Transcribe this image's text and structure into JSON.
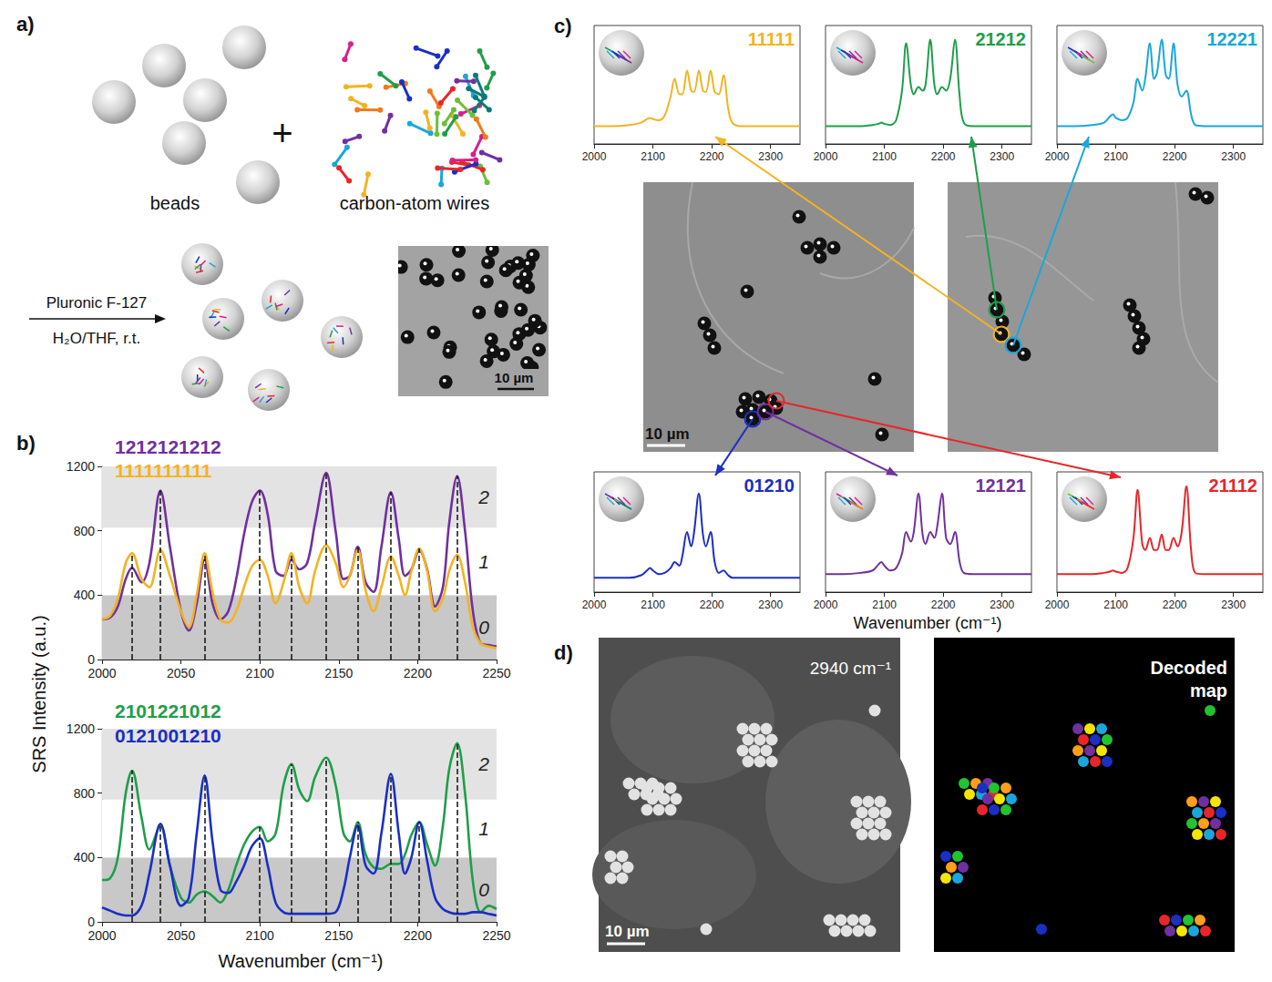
{
  "figure": {
    "panel_letters": [
      "a)",
      "b)",
      "c)",
      "d)"
    ],
    "panel_a": {
      "beads_label": "beads",
      "wires_label": "carbon-atom wires",
      "plus": "+",
      "reagent": "Pluronic F-127",
      "conditions": "H₂O/THF, r.t.",
      "scale_bar": "10 µm"
    },
    "panel_b": {
      "y_axis_title": "SRS Intensity (a.u.)",
      "x_axis_title": "Wavenumber (cm⁻¹)"
    },
    "panel_c": {
      "x_axis_title": "Wavenumber (cm⁻¹)",
      "scale_bar": "10 µm"
    },
    "panel_d": {
      "channel_label": "2940 cm⁻¹",
      "map_label": "Decoded map",
      "scale_bar": "10 µm"
    }
  },
  "chart_data": [
    {
      "type": "line",
      "x": [
        2000,
        2005,
        2010,
        2015,
        2019,
        2025,
        2030,
        2037,
        2043,
        2050,
        2055,
        2060,
        2065,
        2070,
        2075,
        2080,
        2085,
        2090,
        2095,
        2100,
        2105,
        2110,
        2115,
        2120,
        2125,
        2130,
        2135,
        2142,
        2148,
        2153,
        2157,
        2162,
        2167,
        2172,
        2177,
        2183,
        2188,
        2192,
        2196,
        2201,
        2206,
        2211,
        2216,
        2220,
        2225,
        2230,
        2235,
        2240,
        2245,
        2250
      ],
      "series": [
        {
          "name": "1212121212",
          "color": "#7030a0",
          "values": [
            250,
            260,
            330,
            500,
            570,
            480,
            600,
            1050,
            700,
            300,
            180,
            350,
            620,
            350,
            250,
            300,
            500,
            780,
            980,
            1050,
            900,
            550,
            520,
            620,
            560,
            600,
            850,
            1160,
            800,
            500,
            520,
            700,
            480,
            420,
            700,
            1040,
            750,
            520,
            560,
            680,
            560,
            330,
            450,
            850,
            1140,
            800,
            300,
            100,
            90,
            80
          ]
        },
        {
          "name": "1111111111",
          "color": "#f2b323",
          "values": [
            250,
            270,
            380,
            600,
            660,
            500,
            450,
            680,
            520,
            300,
            200,
            400,
            660,
            420,
            250,
            230,
            300,
            450,
            580,
            620,
            520,
            350,
            480,
            660,
            450,
            350,
            550,
            710,
            600,
            450,
            520,
            680,
            430,
            300,
            450,
            640,
            520,
            400,
            550,
            690,
            550,
            300,
            380,
            550,
            650,
            480,
            200,
            100,
            80,
            70
          ]
        }
      ],
      "xlim": [
        2000,
        2250
      ],
      "xticks": [
        2000,
        2050,
        2100,
        2150,
        2200,
        2250
      ],
      "ylim": [
        0,
        1200
      ],
      "yticks": [
        0,
        400,
        800,
        1200
      ],
      "bands": [
        {
          "from": 0,
          "to": 400,
          "label": "0",
          "color": "#c8c8c8"
        },
        {
          "from": 400,
          "to": 820,
          "label": "1",
          "color": "#ffffff"
        },
        {
          "from": 820,
          "to": 1200,
          "label": "2",
          "color": "#e3e3e3"
        }
      ],
      "peak_positions": [
        2019,
        2037,
        2065,
        2100,
        2120,
        2142,
        2162,
        2183,
        2201,
        2225
      ],
      "grid": false
    },
    {
      "type": "line",
      "x": [
        2000,
        2005,
        2010,
        2015,
        2019,
        2025,
        2030,
        2037,
        2043,
        2050,
        2055,
        2060,
        2065,
        2070,
        2075,
        2080,
        2085,
        2090,
        2095,
        2100,
        2105,
        2110,
        2115,
        2120,
        2125,
        2130,
        2135,
        2142,
        2148,
        2153,
        2157,
        2162,
        2167,
        2172,
        2177,
        2183,
        2188,
        2192,
        2196,
        2201,
        2206,
        2211,
        2216,
        2220,
        2225,
        2230,
        2235,
        2240,
        2245,
        2250
      ],
      "series": [
        {
          "name": "2101221012",
          "color": "#1f9e4a",
          "values": [
            260,
            270,
            400,
            800,
            940,
            650,
            450,
            600,
            350,
            150,
            120,
            170,
            190,
            160,
            120,
            200,
            350,
            480,
            560,
            590,
            500,
            550,
            850,
            980,
            820,
            750,
            900,
            1020,
            850,
            550,
            500,
            620,
            420,
            340,
            330,
            360,
            360,
            420,
            540,
            620,
            480,
            350,
            600,
            950,
            1110,
            800,
            250,
            60,
            100,
            80
          ]
        },
        {
          "name": "0121001210",
          "color": "#1a2fc4",
          "values": [
            90,
            70,
            50,
            40,
            40,
            100,
            300,
            610,
            350,
            100,
            150,
            550,
            910,
            500,
            200,
            180,
            250,
            350,
            470,
            520,
            350,
            120,
            60,
            50,
            50,
            50,
            50,
            50,
            60,
            200,
            400,
            600,
            350,
            300,
            550,
            920,
            550,
            300,
            400,
            620,
            380,
            150,
            80,
            60,
            50,
            50,
            60,
            60,
            50,
            40
          ]
        }
      ],
      "xlim": [
        2000,
        2250
      ],
      "xticks": [
        2000,
        2050,
        2100,
        2150,
        2200,
        2250
      ],
      "ylim": [
        0,
        1200
      ],
      "yticks": [
        0,
        400,
        800,
        1200
      ],
      "bands": [
        {
          "from": 0,
          "to": 400,
          "label": "0",
          "color": "#c8c8c8"
        },
        {
          "from": 400,
          "to": 760,
          "label": "1",
          "color": "#ffffff"
        },
        {
          "from": 760,
          "to": 1200,
          "label": "2",
          "color": "#e3e3e3"
        }
      ],
      "peak_positions": [
        2019,
        2037,
        2065,
        2100,
        2120,
        2142,
        2162,
        2183,
        2201,
        2225
      ],
      "grid": false
    },
    {
      "type": "line",
      "title": "11111",
      "color": "#f2b323",
      "x": [
        2000,
        2030,
        2060,
        2080,
        2090,
        2095,
        2100,
        2110,
        2120,
        2130,
        2137,
        2145,
        2150,
        2158,
        2165,
        2170,
        2178,
        2185,
        2190,
        2198,
        2205,
        2212,
        2220,
        2228,
        2235,
        2250,
        2280,
        2320,
        2350
      ],
      "values": [
        15,
        15,
        16,
        18,
        21,
        22,
        21,
        20,
        24,
        40,
        55,
        42,
        42,
        62,
        45,
        44,
        62,
        45,
        44,
        62,
        44,
        42,
        58,
        30,
        18,
        15,
        15,
        15,
        15
      ],
      "xlim": [
        2000,
        2350
      ],
      "xticks": [
        2000,
        2100,
        2200,
        2300
      ],
      "ylim": [
        0,
        100
      ],
      "tick_labels": "x",
      "grid": false
    },
    {
      "type": "line",
      "title": "21212",
      "color": "#1f9e4a",
      "x": [
        2000,
        2030,
        2060,
        2080,
        2090,
        2095,
        2100,
        2110,
        2120,
        2130,
        2137,
        2145,
        2150,
        2158,
        2165,
        2170,
        2178,
        2185,
        2190,
        2198,
        2205,
        2212,
        2220,
        2228,
        2235,
        2250,
        2280,
        2320,
        2350
      ],
      "values": [
        15,
        15,
        15,
        16,
        17,
        18,
        17,
        16,
        20,
        45,
        85,
        50,
        42,
        48,
        45,
        50,
        88,
        50,
        42,
        48,
        45,
        55,
        88,
        40,
        18,
        15,
        15,
        15,
        15
      ],
      "xlim": [
        2000,
        2350
      ],
      "xticks": [
        2000,
        2100,
        2200,
        2300
      ],
      "ylim": [
        0,
        100
      ],
      "tick_labels": "x",
      "grid": false
    },
    {
      "type": "line",
      "title": "12221",
      "color": "#1aa6dc",
      "x": [
        2000,
        2030,
        2060,
        2080,
        2090,
        2095,
        2100,
        2110,
        2120,
        2130,
        2137,
        2145,
        2150,
        2158,
        2165,
        2170,
        2178,
        2185,
        2190,
        2198,
        2205,
        2212,
        2220,
        2228,
        2235,
        2250,
        2280,
        2320,
        2350
      ],
      "values": [
        15,
        15,
        16,
        18,
        23,
        25,
        22,
        20,
        22,
        35,
        55,
        45,
        55,
        85,
        55,
        60,
        88,
        58,
        55,
        85,
        50,
        40,
        45,
        25,
        16,
        15,
        15,
        15,
        15
      ],
      "xlim": [
        2000,
        2350
      ],
      "xticks": [
        2000,
        2100,
        2200,
        2300
      ],
      "ylim": [
        0,
        100
      ],
      "tick_labels": "x",
      "grid": false
    },
    {
      "type": "line",
      "title": "01210",
      "color": "#1a2fc4",
      "x": [
        2000,
        2030,
        2060,
        2080,
        2090,
        2095,
        2100,
        2110,
        2120,
        2130,
        2137,
        2145,
        2150,
        2158,
        2165,
        2170,
        2178,
        2185,
        2190,
        2198,
        2205,
        2212,
        2220,
        2228,
        2235,
        2250,
        2280,
        2320,
        2350
      ],
      "values": [
        12,
        12,
        12,
        14,
        18,
        20,
        18,
        15,
        16,
        20,
        25,
        22,
        30,
        50,
        38,
        50,
        82,
        48,
        38,
        50,
        25,
        16,
        18,
        14,
        12,
        12,
        12,
        12,
        12
      ],
      "xlim": [
        2000,
        2350
      ],
      "xticks": [
        2000,
        2100,
        2200,
        2300
      ],
      "ylim": [
        0,
        100
      ],
      "tick_labels": "x",
      "grid": false
    },
    {
      "type": "line",
      "title": "12121",
      "color": "#7030a0",
      "x": [
        2000,
        2030,
        2060,
        2080,
        2090,
        2095,
        2100,
        2110,
        2120,
        2130,
        2137,
        2145,
        2150,
        2158,
        2165,
        2170,
        2178,
        2185,
        2190,
        2198,
        2205,
        2212,
        2220,
        2228,
        2235,
        2250,
        2280,
        2320,
        2350
      ],
      "values": [
        15,
        15,
        16,
        18,
        23,
        25,
        22,
        18,
        20,
        32,
        50,
        42,
        50,
        82,
        48,
        40,
        50,
        45,
        55,
        82,
        45,
        40,
        50,
        25,
        16,
        15,
        15,
        15,
        15
      ],
      "xlim": [
        2000,
        2350
      ],
      "xticks": [
        2000,
        2100,
        2200,
        2300
      ],
      "ylim": [
        0,
        100
      ],
      "tick_labels": "x",
      "grid": false
    },
    {
      "type": "line",
      "title": "21112",
      "color": "#e8262a",
      "x": [
        2000,
        2030,
        2060,
        2080,
        2090,
        2095,
        2100,
        2110,
        2120,
        2130,
        2137,
        2145,
        2150,
        2158,
        2165,
        2170,
        2178,
        2185,
        2190,
        2198,
        2205,
        2212,
        2220,
        2228,
        2235,
        2250,
        2280,
        2320,
        2350
      ],
      "values": [
        15,
        15,
        15,
        16,
        17,
        18,
        17,
        16,
        20,
        45,
        85,
        40,
        35,
        45,
        35,
        35,
        48,
        35,
        35,
        45,
        38,
        50,
        88,
        35,
        16,
        15,
        15,
        15,
        15
      ],
      "xlim": [
        2000,
        2350
      ],
      "xticks": [
        2000,
        2100,
        2200,
        2300
      ],
      "ylim": [
        0,
        100
      ],
      "tick_labels": "x",
      "grid": false
    }
  ]
}
